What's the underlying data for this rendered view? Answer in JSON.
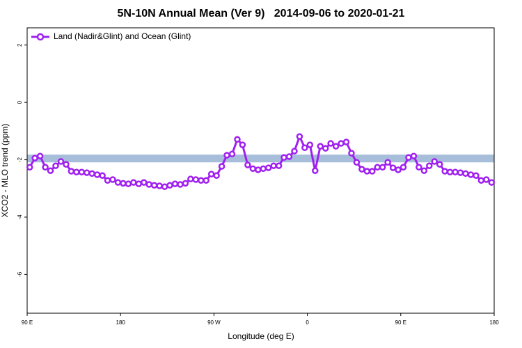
{
  "chart_data": {
    "type": "line",
    "title": "5N-10N Annual Mean (Ver 9)   2014-09-06 to 2020-01-21",
    "x_label": "Longitude (deg E)",
    "y_label": "XCO2 - MLO trend (ppm)",
    "xlim": [
      90,
      540
    ],
    "ylim": [
      -7.35,
      2.6
    ],
    "xticks": [
      {
        "value": 90,
        "label": "90 E"
      },
      180,
      {
        "value": 270,
        "label": "90 W"
      },
      {
        "value": 360,
        "label": "0"
      },
      {
        "value": 450,
        "label": "90 E"
      },
      {
        "value": 540,
        "label": "180"
      }
    ],
    "yticks": [
      2,
      0,
      -2,
      -4,
      -6
    ],
    "band": [
      -2.09,
      -1.82
    ],
    "band_color": "#a7bedb",
    "legend": "top-left",
    "x": [
      92.5,
      97.5,
      102.5,
      107.5,
      112.5,
      117.5,
      122.5,
      127.5,
      132.5,
      137.5,
      142.5,
      147.5,
      152.5,
      157.5,
      162.5,
      167.5,
      172.5,
      177.5,
      182.5,
      187.5,
      192.5,
      197.5,
      202.5,
      207.5,
      212.5,
      217.5,
      222.5,
      227.5,
      232.5,
      237.5,
      242.5,
      247.5,
      252.5,
      257.5,
      262.5,
      267.5,
      272.5,
      277.5,
      282.5,
      287.5,
      292.5,
      297.5,
      302.5,
      307.5,
      312.5,
      317.5,
      322.5,
      327.5,
      332.5,
      337.5,
      342.5,
      347.5,
      352.5,
      357.5,
      362.5,
      367.5,
      372.5,
      377.5,
      382.5,
      387.5,
      392.5,
      397.5,
      402.5,
      407.5,
      412.5,
      417.5,
      422.5,
      427.5,
      432.5,
      437.5,
      442.5,
      447.5,
      452.5,
      457.5,
      462.5,
      467.5,
      472.5,
      477.5,
      482.5,
      487.5,
      492.5,
      497.5,
      502.5,
      507.5,
      512.5,
      517.5,
      522.5,
      527.5,
      532.5,
      537.5
    ],
    "series": [
      {
        "name": "Land (Nadir&Glint) and Ocean (Glint)",
        "color": "#a020f0",
        "values": [
          -2.26,
          -1.94,
          -1.87,
          -2.26,
          -2.38,
          -2.21,
          -2.06,
          -2.16,
          -2.4,
          -2.43,
          -2.43,
          -2.45,
          -2.48,
          -2.52,
          -2.55,
          -2.72,
          -2.69,
          -2.79,
          -2.82,
          -2.84,
          -2.79,
          -2.84,
          -2.79,
          -2.86,
          -2.89,
          -2.91,
          -2.94,
          -2.89,
          -2.84,
          -2.86,
          -2.82,
          -2.67,
          -2.69,
          -2.72,
          -2.72,
          -2.5,
          -2.55,
          -2.23,
          -1.84,
          -1.8,
          -1.29,
          -1.48,
          -2.18,
          -2.31,
          -2.35,
          -2.31,
          -2.28,
          -2.21,
          -2.21,
          -1.92,
          -1.89,
          -1.7,
          -1.19,
          -1.58,
          -1.48,
          -2.38,
          -1.53,
          -1.6,
          -1.43,
          -1.53,
          -1.43,
          -1.38,
          -1.77,
          -2.09,
          -2.33,
          -2.4,
          -2.4,
          -2.26,
          -2.26,
          -2.09,
          -2.28,
          -2.35,
          -2.26,
          -1.92,
          -1.87,
          -2.26,
          -2.38,
          -2.21,
          -2.06,
          -2.16,
          -2.4,
          -2.43,
          -2.43,
          -2.45,
          -2.48,
          -2.52,
          -2.55,
          -2.72,
          -2.69,
          -2.79
        ]
      }
    ]
  }
}
